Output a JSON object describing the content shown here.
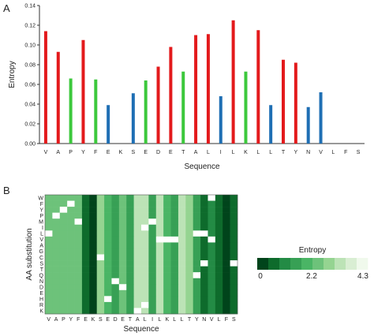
{
  "chart_data": [
    {
      "panel_label": "A",
      "type": "bar",
      "xlabel": "Sequence",
      "ylabel": "Entropy",
      "ylim": [
        0,
        0.14
      ],
      "yticks": [
        "0.00",
        "0.02",
        "0.04",
        "0.06",
        "0.08",
        "0.10",
        "0.12",
        "0.14"
      ],
      "categories": [
        "V",
        "A",
        "P",
        "Y",
        "F",
        "E",
        "K",
        "S",
        "E",
        "D",
        "E",
        "T",
        "A",
        "L",
        "I",
        "L",
        "K",
        "L",
        "L",
        "T",
        "Y",
        "N",
        "V",
        "L",
        "F",
        "S"
      ],
      "values": [
        0.114,
        0.093,
        0.066,
        0.105,
        0.065,
        0.039,
        0,
        0.051,
        0.064,
        0.078,
        0.098,
        0.073,
        0.11,
        0.111,
        0.048,
        0.125,
        0.073,
        0.115,
        0.039,
        0.085,
        0.082,
        0.037,
        0.052,
        0,
        0,
        0
      ],
      "colors": [
        "#e31a1c",
        "#e31a1c",
        "#3cc83c",
        "#e31a1c",
        "#3cc83c",
        "#1f6fb4",
        "#3cc83c",
        "#1f6fb4",
        "#3cc83c",
        "#e31a1c",
        "#e31a1c",
        "#3cc83c",
        "#e31a1c",
        "#e31a1c",
        "#1f6fb4",
        "#e31a1c",
        "#3cc83c",
        "#e31a1c",
        "#1f6fb4",
        "#e31a1c",
        "#e31a1c",
        "#1f6fb4",
        "#1f6fb4",
        "#1f6fb4",
        "#1f6fb4",
        "#1f6fb4"
      ],
      "grid": false
    },
    {
      "panel_label": "B",
      "type": "heatmap",
      "xlabel": "Sequence",
      "ylabel": "AA substitution",
      "columns": [
        "V",
        "A",
        "P",
        "Y",
        "F",
        "E",
        "K",
        "S",
        "E",
        "D",
        "E",
        "T",
        "A",
        "L",
        "I",
        "L",
        "K",
        "L",
        "L",
        "T",
        "Y",
        "N",
        "V",
        "L",
        "F",
        "S"
      ],
      "rows": [
        "W",
        "F",
        "Y",
        "P",
        "M",
        "I",
        "L",
        "V",
        "A",
        "G",
        "C",
        "S",
        "T",
        "Q",
        "N",
        "D",
        "E",
        "H",
        "R",
        "K"
      ],
      "column_levels": [
        5,
        5,
        5,
        5,
        5,
        1,
        0,
        6,
        4,
        3,
        5,
        3,
        7,
        7,
        3,
        7,
        4,
        3,
        7,
        6,
        3,
        1,
        2,
        1,
        0,
        1
      ],
      "white_cells": [
        [
          0,
          22
        ],
        [
          1,
          3
        ],
        [
          2,
          2
        ],
        [
          3,
          1
        ],
        [
          4,
          4
        ],
        [
          4,
          14
        ],
        [
          5,
          13
        ],
        [
          6,
          0
        ],
        [
          6,
          20
        ],
        [
          6,
          21
        ],
        [
          7,
          15
        ],
        [
          7,
          16
        ],
        [
          7,
          17
        ],
        [
          7,
          22
        ],
        [
          10,
          7
        ],
        [
          11,
          21
        ],
        [
          11,
          25
        ],
        [
          13,
          20
        ],
        [
          14,
          9
        ],
        [
          15,
          10
        ],
        [
          17,
          8
        ],
        [
          18,
          13
        ],
        [
          19,
          12
        ]
      ],
      "legend": {
        "title": "Entropy",
        "tick_labels": [
          "0",
          "2.2",
          "4.3"
        ],
        "colors": [
          "#00441b",
          "#0e6b2c",
          "#238b45",
          "#37a055",
          "#4ab565",
          "#6dc27a",
          "#95d491",
          "#bce3b6",
          "#d9eed3",
          "#f0f9ec"
        ]
      }
    }
  ]
}
